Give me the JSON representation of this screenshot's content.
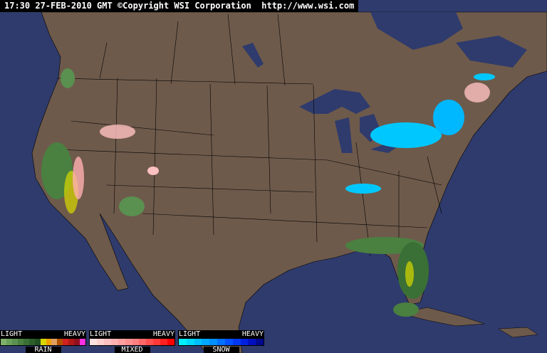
{
  "header": {
    "timestamp": "17:30 27-FEB-2010 GMT",
    "copyright": "©Copyright WSI Corporation",
    "url": "http://www.wsi.com"
  },
  "colors": {
    "ocean": "#2f3b6c",
    "land": "#6e5a4b",
    "border": "#000000"
  },
  "legend": [
    {
      "name": "RAIN",
      "light": "LIGHT",
      "heavy": "HEAVY",
      "colors": [
        "#7fb06a",
        "#6aa05a",
        "#5a9050",
        "#4a8040",
        "#3a7035",
        "#2c602a",
        "#20501f",
        "#d8d800",
        "#f0a000",
        "#e0a060",
        "#b05000",
        "#d02020",
        "#b01818",
        "#901020",
        "#ff30e0"
      ]
    },
    {
      "name": "MIXED",
      "light": "LIGHT",
      "heavy": "HEAVY",
      "colors": [
        "#ffe0e0",
        "#ffd0d0",
        "#ffc0c0",
        "#ffb0b0",
        "#ffa0a0",
        "#ff9090",
        "#ff8080",
        "#ff6868",
        "#ff5050",
        "#ff3838",
        "#ff2020",
        "#ff0000"
      ]
    },
    {
      "name": "SNOW",
      "light": "LIGHT",
      "heavy": "HEAVY",
      "colors": [
        "#00f0ff",
        "#00d8ff",
        "#00c0ff",
        "#00a8ff",
        "#0090ff",
        "#0070ff",
        "#0050ff",
        "#0038f0",
        "#0020e0",
        "#0010c0",
        "#000890"
      ]
    }
  ]
}
